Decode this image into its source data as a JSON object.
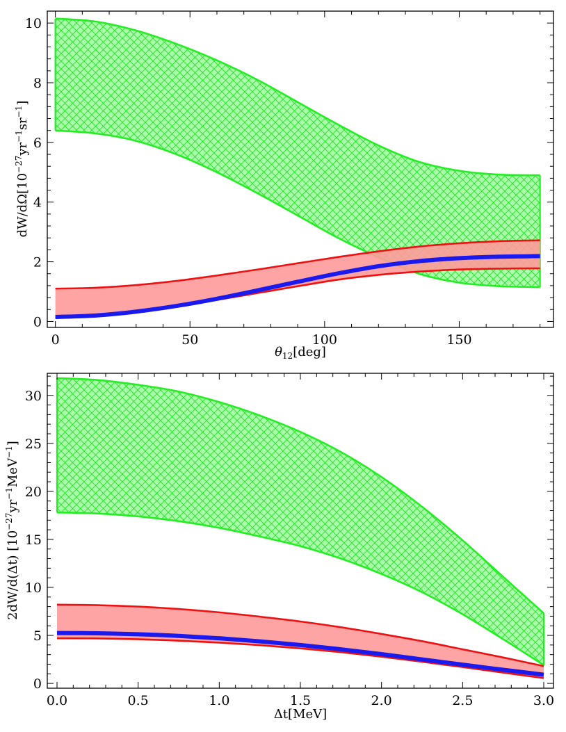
{
  "chart_data": [
    {
      "type": "line",
      "title": "",
      "xlabel": "θ12[deg]",
      "ylabel": "dW/dΩ[10−27yr−1sr−1]",
      "xlim": [
        -3,
        185
      ],
      "ylim": [
        -0.2,
        10.4
      ],
      "xticks": [
        0,
        50,
        100,
        150
      ],
      "yticks": [
        0,
        2,
        4,
        6,
        8,
        10
      ],
      "xtick_labels": [
        "0",
        "50",
        "100",
        "150"
      ],
      "ytick_labels": [
        "0",
        "2",
        "4",
        "6",
        "8",
        "10"
      ],
      "x": [
        0,
        15,
        30,
        45,
        60,
        75,
        90,
        105,
        120,
        135,
        150,
        165,
        180
      ],
      "series": [
        {
          "name": "green band upper",
          "color": "#22ee22",
          "values": [
            10.15,
            10.05,
            9.75,
            9.3,
            8.75,
            8.1,
            7.35,
            6.6,
            5.9,
            5.35,
            5.05,
            4.92,
            4.9
          ]
        },
        {
          "name": "green band lower",
          "color": "#22ee22",
          "values": [
            6.4,
            6.3,
            6.05,
            5.6,
            5.0,
            4.3,
            3.55,
            2.8,
            2.15,
            1.6,
            1.3,
            1.18,
            1.15
          ]
        },
        {
          "name": "red band upper",
          "color": "#ee1111",
          "values": [
            1.1,
            1.13,
            1.22,
            1.36,
            1.54,
            1.74,
            1.95,
            2.16,
            2.35,
            2.51,
            2.62,
            2.69,
            2.72
          ]
        },
        {
          "name": "red band lower",
          "color": "#ee1111",
          "values": [
            0.12,
            0.17,
            0.3,
            0.5,
            0.72,
            0.95,
            1.18,
            1.4,
            1.56,
            1.67,
            1.74,
            1.77,
            1.78
          ]
        },
        {
          "name": "blue central",
          "color": "#1a1aee",
          "values": [
            0.15,
            0.2,
            0.33,
            0.52,
            0.76,
            1.04,
            1.33,
            1.61,
            1.85,
            2.02,
            2.12,
            2.17,
            2.19
          ]
        }
      ]
    },
    {
      "type": "line",
      "title": "",
      "xlabel": "Δt[MeV]",
      "ylabel": "2dW/d(Δt) [10−27yr−1MeV−1]",
      "xlim": [
        -0.06,
        3.06
      ],
      "ylim": [
        -0.5,
        32.3
      ],
      "xticks": [
        0,
        0.5,
        1,
        1.5,
        2,
        2.5,
        3
      ],
      "yticks": [
        0,
        5,
        10,
        15,
        20,
        25,
        30
      ],
      "xtick_labels": [
        "0.0",
        "0.5",
        "1.0",
        "1.5",
        "2.0",
        "2.5",
        "3.0"
      ],
      "ytick_labels": [
        "0",
        "5",
        "10",
        "15",
        "20",
        "25",
        "30"
      ],
      "x": [
        0,
        0.25,
        0.5,
        0.75,
        1.0,
        1.25,
        1.5,
        1.75,
        2.0,
        2.25,
        2.5,
        2.75,
        3.0
      ],
      "series": [
        {
          "name": "green band upper",
          "color": "#22ee22",
          "values": [
            31.8,
            31.6,
            31.1,
            30.4,
            29.3,
            27.9,
            26.2,
            24.1,
            21.5,
            18.4,
            14.9,
            11.1,
            7.3
          ]
        },
        {
          "name": "green band lower",
          "color": "#22ee22",
          "values": [
            17.8,
            17.7,
            17.4,
            16.9,
            16.2,
            15.3,
            14.3,
            13.0,
            11.4,
            9.5,
            7.2,
            4.6,
            1.9
          ]
        },
        {
          "name": "red band upper",
          "color": "#ee1111",
          "values": [
            8.2,
            8.15,
            8.0,
            7.75,
            7.4,
            6.95,
            6.45,
            5.85,
            5.15,
            4.4,
            3.55,
            2.7,
            1.8
          ]
        },
        {
          "name": "red band lower",
          "color": "#ee1111",
          "values": [
            4.7,
            4.68,
            4.6,
            4.45,
            4.25,
            3.98,
            3.65,
            3.25,
            2.78,
            2.25,
            1.7,
            1.12,
            0.55
          ]
        },
        {
          "name": "blue central",
          "color": "#1a1aee",
          "values": [
            5.25,
            5.22,
            5.12,
            4.95,
            4.7,
            4.38,
            4.0,
            3.55,
            3.05,
            2.5,
            1.95,
            1.42,
            0.9
          ]
        }
      ]
    }
  ]
}
